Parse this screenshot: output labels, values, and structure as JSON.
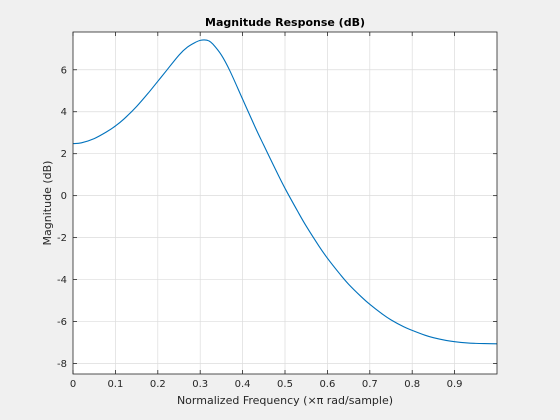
{
  "chart_data": {
    "type": "line",
    "title": "Magnitude Response (dB)",
    "xlabel": "Normalized Frequency (×π rad/sample)",
    "ylabel": "Magnitude (dB)",
    "xlim": [
      0,
      1
    ],
    "ylim": [
      -8.5,
      7.8
    ],
    "x_ticks": [
      0,
      0.1,
      0.2,
      0.3,
      0.4,
      0.5,
      0.6,
      0.7,
      0.8,
      0.9
    ],
    "x_tick_labels": [
      "0",
      "0.1",
      "0.2",
      "0.3",
      "0.4",
      "0.5",
      "0.6",
      "0.7",
      "0.8",
      "0.9"
    ],
    "y_ticks": [
      -8,
      -6,
      -4,
      -2,
      0,
      2,
      4,
      6
    ],
    "y_tick_labels": [
      "-8",
      "-6",
      "-4",
      "-2",
      "0",
      "2",
      "4",
      "6"
    ],
    "grid": true,
    "line_color": "#0072bd",
    "series": [
      {
        "x": [
          0,
          0.02,
          0.05,
          0.08,
          0.1,
          0.12,
          0.15,
          0.18,
          0.2,
          0.22,
          0.25,
          0.27,
          0.29,
          0.3,
          0.31,
          0.32,
          0.33,
          0.35,
          0.37,
          0.4,
          0.43,
          0.45,
          0.48,
          0.5,
          0.53,
          0.55,
          0.58,
          0.6,
          0.63,
          0.65,
          0.68,
          0.7,
          0.73,
          0.75,
          0.78,
          0.8,
          0.83,
          0.85,
          0.88,
          0.9,
          0.93,
          0.95,
          0.97,
          1.0
        ],
        "y": [
          2.48,
          2.52,
          2.72,
          3.05,
          3.32,
          3.65,
          4.25,
          4.95,
          5.45,
          5.95,
          6.7,
          7.08,
          7.32,
          7.4,
          7.42,
          7.38,
          7.22,
          6.7,
          5.95,
          4.6,
          3.25,
          2.4,
          1.15,
          0.35,
          -0.75,
          -1.45,
          -2.4,
          -2.98,
          -3.75,
          -4.22,
          -4.82,
          -5.18,
          -5.65,
          -5.92,
          -6.25,
          -6.42,
          -6.65,
          -6.77,
          -6.9,
          -6.96,
          -7.02,
          -7.04,
          -7.05,
          -7.06
        ]
      }
    ]
  }
}
